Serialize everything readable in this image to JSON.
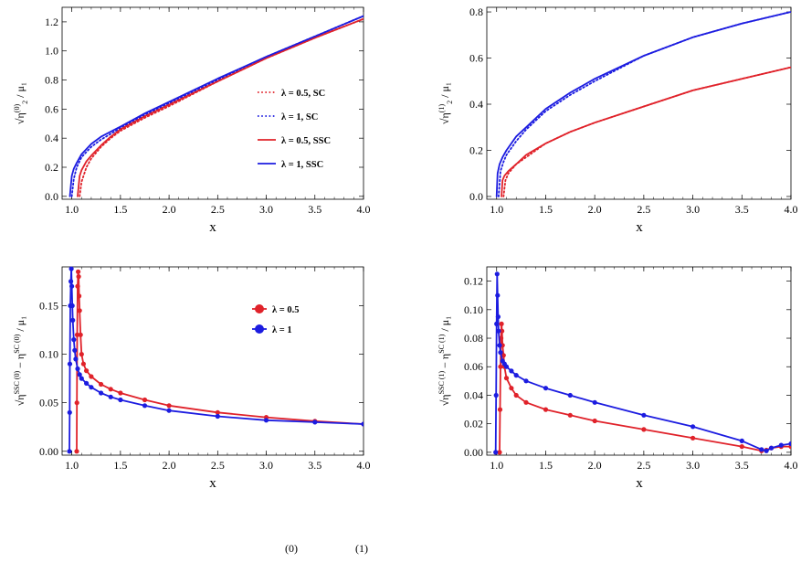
{
  "chart_data": [
    {
      "type": "line",
      "xlabel": "x",
      "ylabel": {
        "pre": "",
        "base": "η",
        "sub": "2",
        "sup": "(0)",
        "post": " / μ₁"
      },
      "xlim": [
        0.9,
        4.0
      ],
      "ylim": [
        -0.02,
        1.3
      ],
      "xticks": [
        "1.0",
        "1.5",
        "2.0",
        "2.5",
        "3.0",
        "3.5",
        "4.0"
      ],
      "yticks": [
        "0.0",
        "0.2",
        "0.4",
        "0.6",
        "0.8",
        "1.0",
        "1.2"
      ],
      "legend_position": "center-right",
      "series": [
        {
          "name": "λ = 0.5, SC",
          "color": "#e0222a",
          "style": "dotted",
          "x": [
            1.08,
            1.1,
            1.15,
            1.2,
            1.3,
            1.4,
            1.5,
            1.75,
            2.0,
            2.5,
            3.0,
            3.5,
            4.0
          ],
          "y": [
            0.0,
            0.1,
            0.2,
            0.26,
            0.34,
            0.4,
            0.45,
            0.54,
            0.62,
            0.79,
            0.95,
            1.09,
            1.22
          ]
        },
        {
          "name": "λ = 1, SC",
          "color": "#1c1ce0",
          "style": "dotted",
          "x": [
            1.0,
            1.02,
            1.05,
            1.1,
            1.2,
            1.3,
            1.5,
            1.75,
            2.0,
            2.5,
            3.0,
            3.5,
            4.0
          ],
          "y": [
            0.0,
            0.12,
            0.2,
            0.27,
            0.34,
            0.39,
            0.47,
            0.56,
            0.64,
            0.8,
            0.96,
            1.1,
            1.24
          ]
        },
        {
          "name": "λ = 0.5, SSC",
          "color": "#e0222a",
          "style": "solid",
          "x": [
            1.06,
            1.08,
            1.1,
            1.15,
            1.2,
            1.3,
            1.4,
            1.5,
            1.75,
            2.0,
            2.5,
            3.0,
            3.5,
            4.0
          ],
          "y": [
            0.0,
            0.14,
            0.18,
            0.24,
            0.28,
            0.35,
            0.41,
            0.46,
            0.55,
            0.63,
            0.79,
            0.95,
            1.09,
            1.22
          ]
        },
        {
          "name": "λ = 1, SSC",
          "color": "#1c1ce0",
          "style": "solid",
          "x": [
            0.98,
            1.0,
            1.02,
            1.05,
            1.1,
            1.2,
            1.3,
            1.5,
            1.75,
            2.0,
            2.5,
            3.0,
            3.5,
            4.0
          ],
          "y": [
            0.0,
            0.14,
            0.19,
            0.23,
            0.29,
            0.36,
            0.41,
            0.48,
            0.57,
            0.65,
            0.81,
            0.96,
            1.1,
            1.24
          ]
        }
      ]
    },
    {
      "type": "line",
      "xlabel": "x",
      "ylabel": {
        "pre": "",
        "base": "η",
        "sub": "2",
        "sup": "(1)",
        "post": " / μ₁"
      },
      "xlim": [
        0.9,
        4.0
      ],
      "ylim": [
        -0.012,
        0.82
      ],
      "xticks": [
        "1.0",
        "1.5",
        "2.0",
        "2.5",
        "3.0",
        "3.5",
        "4.0"
      ],
      "yticks": [
        "0.0",
        "0.2",
        "0.4",
        "0.6",
        "0.8"
      ],
      "series": [
        {
          "name": "λ = 0.5, SC",
          "color": "#e0222a",
          "style": "dotted",
          "x": [
            1.07,
            1.09,
            1.12,
            1.2,
            1.3,
            1.5,
            1.75,
            2.0,
            2.5,
            3.0,
            3.5,
            4.0
          ],
          "y": [
            0.0,
            0.07,
            0.1,
            0.14,
            0.17,
            0.23,
            0.28,
            0.32,
            0.39,
            0.46,
            0.51,
            0.56
          ]
        },
        {
          "name": "λ = 1, SC",
          "color": "#1c1ce0",
          "style": "dotted",
          "x": [
            1.02,
            1.04,
            1.07,
            1.1,
            1.2,
            1.3,
            1.5,
            1.75,
            2.0,
            2.5,
            3.0,
            3.5,
            4.0
          ],
          "y": [
            0.0,
            0.11,
            0.15,
            0.18,
            0.24,
            0.29,
            0.37,
            0.44,
            0.5,
            0.61,
            0.69,
            0.75,
            0.8
          ]
        },
        {
          "name": "λ = 0.5, SSC",
          "color": "#e0222a",
          "style": "solid",
          "x": [
            1.05,
            1.06,
            1.08,
            1.12,
            1.2,
            1.3,
            1.5,
            1.75,
            2.0,
            2.5,
            3.0,
            3.5,
            4.0
          ],
          "y": [
            0.0,
            0.07,
            0.09,
            0.11,
            0.14,
            0.18,
            0.23,
            0.28,
            0.32,
            0.39,
            0.46,
            0.51,
            0.56
          ]
        },
        {
          "name": "λ = 1, SSC",
          "color": "#1c1ce0",
          "style": "solid",
          "x": [
            1.0,
            1.01,
            1.03,
            1.06,
            1.1,
            1.2,
            1.3,
            1.5,
            1.75,
            2.0,
            2.5,
            3.0,
            3.5,
            4.0
          ],
          "y": [
            0.0,
            0.1,
            0.14,
            0.17,
            0.2,
            0.26,
            0.3,
            0.38,
            0.45,
            0.51,
            0.61,
            0.69,
            0.75,
            0.8
          ]
        }
      ]
    },
    {
      "type": "line",
      "xlabel": "x",
      "ylabel": {
        "pre": "",
        "base": "η",
        "sup": "SSC (0)",
        "mid": " − η",
        "sup2": "SC (0)",
        "post": " / μ₁"
      },
      "xlim": [
        0.9,
        4.0
      ],
      "ylim": [
        -0.004,
        0.19
      ],
      "xticks": [
        "1.0",
        "1.5",
        "2.0",
        "2.5",
        "3.0",
        "3.5",
        "4.0"
      ],
      "yticks": [
        "0.00",
        "0.05",
        "0.10",
        "0.15"
      ],
      "legend_position": "upper-center",
      "series": [
        {
          "name": "λ = 0.5",
          "color": "#e0222a",
          "style": "markers",
          "x": [
            1.05,
            1.052,
            1.055,
            1.06,
            1.065,
            1.07,
            1.075,
            1.08,
            1.09,
            1.1,
            1.12,
            1.15,
            1.2,
            1.3,
            1.4,
            1.5,
            1.75,
            2.0,
            2.5,
            3.0,
            3.5,
            4.0
          ],
          "y": [
            0.0,
            0.05,
            0.12,
            0.17,
            0.185,
            0.18,
            0.16,
            0.145,
            0.12,
            0.1,
            0.09,
            0.083,
            0.077,
            0.069,
            0.064,
            0.06,
            0.053,
            0.047,
            0.04,
            0.035,
            0.031,
            0.028
          ]
        },
        {
          "name": "λ = 1",
          "color": "#1c1ce0",
          "style": "markers",
          "x": [
            0.975,
            0.978,
            0.98,
            0.985,
            0.99,
            0.995,
            1.0,
            1.005,
            1.01,
            1.02,
            1.03,
            1.04,
            1.06,
            1.08,
            1.1,
            1.15,
            1.2,
            1.3,
            1.4,
            1.5,
            1.75,
            2.0,
            2.5,
            3.0,
            3.5,
            4.0
          ],
          "y": [
            0.0,
            0.04,
            0.09,
            0.15,
            0.175,
            0.188,
            0.17,
            0.15,
            0.135,
            0.115,
            0.104,
            0.095,
            0.085,
            0.079,
            0.075,
            0.07,
            0.066,
            0.06,
            0.056,
            0.053,
            0.047,
            0.042,
            0.036,
            0.032,
            0.03,
            0.028
          ]
        }
      ]
    },
    {
      "type": "line",
      "xlabel": "x",
      "ylabel": {
        "pre": "",
        "base": "η",
        "sup": "SSC (1)",
        "mid": " − η",
        "sup2": "SC (1)",
        "post": " / μ₁"
      },
      "xlim": [
        0.9,
        4.0
      ],
      "ylim": [
        -0.002,
        0.13
      ],
      "xticks": [
        "1.0",
        "1.5",
        "2.0",
        "2.5",
        "3.0",
        "3.5",
        "4.0"
      ],
      "yticks": [
        "0.00",
        "0.02",
        "0.04",
        "0.06",
        "0.08",
        "0.10",
        "0.12"
      ],
      "series": [
        {
          "name": "λ = 0.5",
          "color": "#e0222a",
          "style": "markers",
          "x": [
            1.03,
            1.035,
            1.04,
            1.045,
            1.05,
            1.055,
            1.06,
            1.07,
            1.08,
            1.1,
            1.15,
            1.2,
            1.3,
            1.5,
            1.75,
            2.0,
            2.5,
            3.0,
            3.5,
            3.7,
            3.75,
            3.8,
            3.9,
            4.0
          ],
          "y": [
            0.0,
            0.03,
            0.06,
            0.08,
            0.09,
            0.085,
            0.075,
            0.068,
            0.06,
            0.052,
            0.045,
            0.04,
            0.035,
            0.03,
            0.026,
            0.022,
            0.016,
            0.01,
            0.004,
            0.001,
            0.0015,
            0.003,
            0.004,
            0.004
          ]
        },
        {
          "name": "λ = 1",
          "color": "#1c1ce0",
          "style": "markers",
          "x": [
            0.99,
            0.995,
            1.0,
            1.005,
            1.01,
            1.015,
            1.02,
            1.03,
            1.04,
            1.06,
            1.08,
            1.1,
            1.15,
            1.2,
            1.3,
            1.5,
            1.75,
            2.0,
            2.5,
            3.0,
            3.5,
            3.7,
            3.75,
            3.8,
            3.9,
            4.0
          ],
          "y": [
            0.0,
            0.04,
            0.09,
            0.125,
            0.11,
            0.095,
            0.085,
            0.075,
            0.07,
            0.064,
            0.062,
            0.06,
            0.057,
            0.054,
            0.05,
            0.045,
            0.04,
            0.035,
            0.026,
            0.018,
            0.008,
            0.002,
            0.001,
            0.003,
            0.005,
            0.006
          ]
        }
      ]
    }
  ]
}
